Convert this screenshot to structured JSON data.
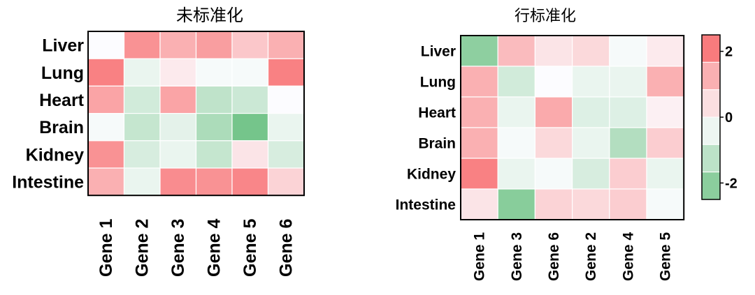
{
  "chart_data": [
    {
      "type": "heatmap",
      "title": "未标准化",
      "rows": [
        "Liver",
        "Lung",
        "Heart",
        "Brain",
        "Kidney",
        "Intestine"
      ],
      "columns": [
        "Gene 1",
        "Gene 2",
        "Gene 3",
        "Gene 4",
        "Gene 5",
        "Gene 6"
      ],
      "values": [
        [
          0.0,
          1.8,
          1.3,
          1.6,
          0.9,
          1.3
        ],
        [
          2.1,
          -0.3,
          0.3,
          -0.1,
          -0.1,
          2.1
        ],
        [
          1.5,
          -0.7,
          1.5,
          -1.0,
          -0.8,
          0.0
        ],
        [
          -0.1,
          -0.9,
          -0.4,
          -1.3,
          -2.2,
          -0.3
        ],
        [
          1.8,
          -0.6,
          -0.3,
          -0.9,
          0.4,
          -0.6
        ],
        [
          1.3,
          -0.3,
          1.9,
          1.8,
          2.0,
          0.7
        ]
      ],
      "color_range": [
        -2.5,
        2.5
      ],
      "grid": true
    },
    {
      "type": "heatmap",
      "title": "行标准化",
      "rows": [
        "Liver",
        "Lung",
        "Heart",
        "Brain",
        "Kidney",
        "Intestine"
      ],
      "columns": [
        "Gene 1",
        "Gene 3",
        "Gene 6",
        "Gene 2",
        "Gene 4",
        "Gene 5"
      ],
      "values": [
        [
          -1.8,
          1.1,
          0.4,
          0.6,
          -0.1,
          0.3
        ],
        [
          1.3,
          -0.7,
          0.0,
          -0.3,
          -0.3,
          1.3
        ],
        [
          1.3,
          -0.3,
          1.4,
          -0.5,
          -0.5,
          0.2
        ],
        [
          1.3,
          -0.1,
          0.6,
          -0.3,
          -1.2,
          0.8
        ],
        [
          2.1,
          -0.3,
          -0.1,
          -0.6,
          0.8,
          -0.3
        ],
        [
          0.4,
          -1.9,
          0.7,
          0.6,
          0.8,
          -0.1
        ]
      ],
      "color_range": [
        -2.5,
        2.5
      ],
      "grid": true,
      "colorbar": {
        "ticks": [
          2,
          0,
          -2
        ],
        "tick_labels": [
          "2",
          "0",
          "-2"
        ]
      }
    }
  ],
  "colors": {
    "high": "#f8696b",
    "mid": "#fcfcff",
    "low": "#63be7b",
    "grid_line": "#ffffff",
    "frame": "#000000"
  }
}
